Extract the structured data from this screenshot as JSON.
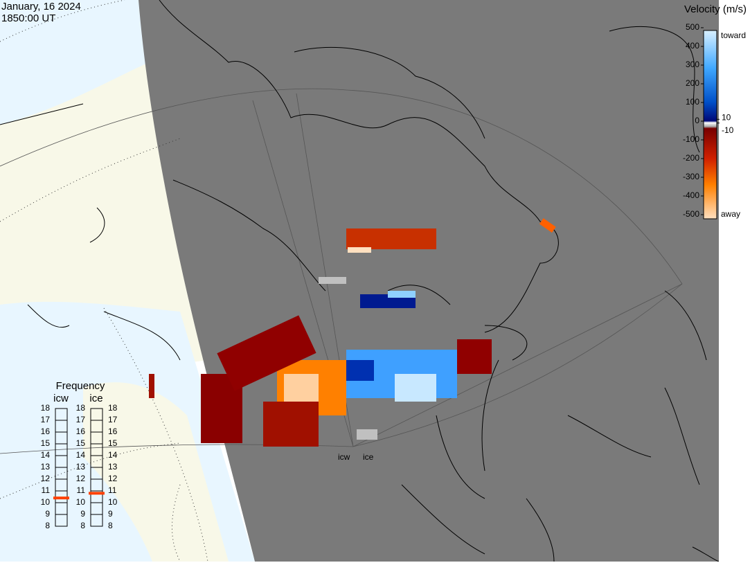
{
  "header": {
    "date": "January, 16 2024",
    "time": "1850:00 UT"
  },
  "velocity_scale": {
    "title": "Velocity (m/s)",
    "ticks": [
      500,
      400,
      300,
      200,
      100,
      0,
      -100,
      -200,
      -300,
      -400,
      -500
    ],
    "inner_ticks": [
      10,
      -10
    ],
    "toward": "toward",
    "away": "away"
  },
  "frequency": {
    "title": "Frequency",
    "lim": [
      8,
      18
    ],
    "ticks": [
      8,
      9,
      10,
      11,
      12,
      13,
      14,
      15,
      16,
      17,
      18
    ],
    "radars": [
      {
        "name": "icw",
        "value": 10.4
      },
      {
        "name": "ice",
        "value": 10.8
      }
    ]
  },
  "radar_labels": [
    "icw",
    "ice"
  ]
}
